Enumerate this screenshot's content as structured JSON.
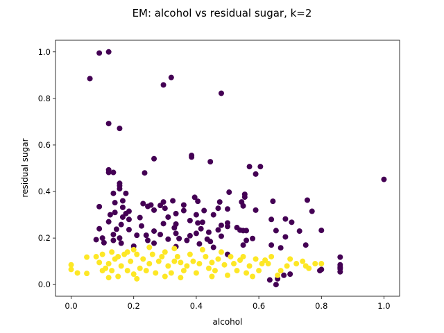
{
  "chart_data": {
    "type": "scatter",
    "title": "EM: alcohol vs residual sugar, k=2",
    "xlabel": "alcohol",
    "ylabel": "residual sugar",
    "xlim": [
      -0.05,
      1.05
    ],
    "ylim": [
      -0.05,
      1.05
    ],
    "x_ticks": [
      "0.0",
      "0.2",
      "0.4",
      "0.6",
      "0.8",
      "1.0"
    ],
    "y_ticks": [
      "0.0",
      "0.2",
      "0.4",
      "0.6",
      "0.8",
      "1.0"
    ],
    "grid": false,
    "legend": "none",
    "colors": {
      "cluster_0": "#440154",
      "cluster_1": "#fde725"
    },
    "series": [
      {
        "color": "#440154",
        "points": [
          [
            0.09,
            0.995
          ],
          [
            0.12,
            1.0
          ],
          [
            0.06,
            0.885
          ],
          [
            0.32,
            0.89
          ],
          [
            0.295,
            0.858
          ],
          [
            0.48,
            0.822
          ],
          [
            0.12,
            0.692
          ],
          [
            0.155,
            0.671
          ],
          [
            0.385,
            0.555
          ],
          [
            0.385,
            0.548
          ],
          [
            0.265,
            0.541
          ],
          [
            0.445,
            0.528
          ],
          [
            0.57,
            0.507
          ],
          [
            0.605,
            0.507
          ],
          [
            0.12,
            0.493
          ],
          [
            0.12,
            0.482
          ],
          [
            0.235,
            0.48
          ],
          [
            0.135,
            0.482
          ],
          [
            0.59,
            0.475
          ],
          [
            1.0,
            0.452
          ],
          [
            0.155,
            0.435
          ],
          [
            0.155,
            0.425
          ],
          [
            0.155,
            0.412
          ],
          [
            0.135,
            0.392
          ],
          [
            0.175,
            0.392
          ],
          [
            0.505,
            0.397
          ],
          [
            0.555,
            0.388
          ],
          [
            0.555,
            0.376
          ],
          [
            0.395,
            0.375
          ],
          [
            0.325,
            0.36
          ],
          [
            0.295,
            0.355
          ],
          [
            0.405,
            0.358
          ],
          [
            0.645,
            0.358
          ],
          [
            0.475,
            0.355
          ],
          [
            0.14,
            0.352
          ],
          [
            0.165,
            0.36
          ],
          [
            0.23,
            0.348
          ],
          [
            0.255,
            0.342
          ],
          [
            0.545,
            0.355
          ],
          [
            0.755,
            0.363
          ],
          [
            0.55,
            0.338
          ],
          [
            0.36,
            0.342
          ],
          [
            0.285,
            0.34
          ],
          [
            0.245,
            0.336
          ],
          [
            0.09,
            0.335
          ],
          [
            0.165,
            0.332
          ],
          [
            0.3,
            0.328
          ],
          [
            0.47,
            0.328
          ],
          [
            0.5,
            0.325
          ],
          [
            0.59,
            0.32
          ],
          [
            0.265,
            0.32
          ],
          [
            0.185,
            0.315
          ],
          [
            0.36,
            0.318
          ],
          [
            0.425,
            0.318
          ],
          [
            0.77,
            0.315
          ],
          [
            0.14,
            0.31
          ],
          [
            0.175,
            0.305
          ],
          [
            0.335,
            0.305
          ],
          [
            0.4,
            0.3
          ],
          [
            0.125,
            0.3
          ],
          [
            0.455,
            0.3
          ],
          [
            0.31,
            0.29
          ],
          [
            0.22,
            0.288
          ],
          [
            0.165,
            0.29
          ],
          [
            0.685,
            0.282
          ],
          [
            0.185,
            0.28
          ],
          [
            0.64,
            0.28
          ],
          [
            0.38,
            0.275
          ],
          [
            0.42,
            0.268
          ],
          [
            0.5,
            0.265
          ],
          [
            0.405,
            0.265
          ],
          [
            0.705,
            0.268
          ],
          [
            0.12,
            0.27
          ],
          [
            0.295,
            0.262
          ],
          [
            0.335,
            0.26
          ],
          [
            0.16,
            0.258
          ],
          [
            0.48,
            0.255
          ],
          [
            0.225,
            0.252
          ],
          [
            0.5,
            0.25
          ],
          [
            0.53,
            0.245
          ],
          [
            0.33,
            0.244
          ],
          [
            0.415,
            0.24
          ],
          [
            0.09,
            0.24
          ],
          [
            0.145,
            0.238
          ],
          [
            0.185,
            0.236
          ],
          [
            0.47,
            0.235
          ],
          [
            0.54,
            0.234
          ],
          [
            0.55,
            0.232
          ],
          [
            0.56,
            0.232
          ],
          [
            0.8,
            0.233
          ],
          [
            0.655,
            0.232
          ],
          [
            0.265,
            0.23
          ],
          [
            0.73,
            0.23
          ],
          [
            0.44,
            0.225
          ],
          [
            0.335,
            0.22
          ],
          [
            0.4,
            0.22
          ],
          [
            0.135,
            0.215
          ],
          [
            0.21,
            0.212
          ],
          [
            0.24,
            0.212
          ],
          [
            0.285,
            0.215
          ],
          [
            0.38,
            0.21
          ],
          [
            0.48,
            0.208
          ],
          [
            0.685,
            0.205
          ],
          [
            0.1,
            0.2
          ],
          [
            0.155,
            0.2
          ],
          [
            0.345,
            0.198
          ],
          [
            0.58,
            0.198
          ],
          [
            0.31,
            0.195
          ],
          [
            0.435,
            0.195
          ],
          [
            0.08,
            0.193
          ],
          [
            0.135,
            0.19
          ],
          [
            0.245,
            0.19
          ],
          [
            0.37,
            0.19
          ],
          [
            0.56,
            0.19
          ],
          [
            0.445,
            0.185
          ],
          [
            0.105,
            0.18
          ],
          [
            0.16,
            0.178
          ],
          [
            0.265,
            0.178
          ],
          [
            0.41,
            0.175
          ],
          [
            0.55,
            0.17
          ],
          [
            0.64,
            0.17
          ],
          [
            0.75,
            0.17
          ],
          [
            0.2,
            0.165
          ],
          [
            0.335,
            0.163
          ],
          [
            0.455,
            0.16
          ],
          [
            0.67,
            0.158
          ],
          [
            0.86,
            0.118
          ],
          [
            0.86,
            0.085
          ],
          [
            0.86,
            0.075
          ],
          [
            0.86,
            0.068
          ],
          [
            0.86,
            0.055
          ],
          [
            0.795,
            0.06
          ],
          [
            0.8,
            0.065
          ],
          [
            0.7,
            0.045
          ],
          [
            0.68,
            0.04
          ],
          [
            0.635,
            0.02
          ],
          [
            0.66,
            0.025
          ],
          [
            0.655,
            0.0
          ],
          [
            0.5,
            0.13
          ]
        ]
      },
      {
        "color": "#fde725",
        "points": [
          [
            0.0,
            0.085
          ],
          [
            0.0,
            0.065
          ],
          [
            0.02,
            0.05
          ],
          [
            0.05,
            0.048
          ],
          [
            0.05,
            0.118
          ],
          [
            0.08,
            0.12
          ],
          [
            0.09,
            0.095
          ],
          [
            0.1,
            0.06
          ],
          [
            0.12,
            0.03
          ],
          [
            0.13,
            0.14
          ],
          [
            0.15,
            0.035
          ],
          [
            0.17,
            0.13
          ],
          [
            0.21,
            0.025
          ],
          [
            0.2,
            0.15
          ],
          [
            0.25,
            0.16
          ],
          [
            0.3,
            0.035
          ],
          [
            0.33,
            0.155
          ],
          [
            0.35,
            0.03
          ],
          [
            0.42,
            0.15
          ],
          [
            0.45,
            0.035
          ],
          [
            0.48,
            0.14
          ],
          [
            0.5,
            0.04
          ],
          [
            0.55,
            0.12
          ],
          [
            0.58,
            0.035
          ],
          [
            0.62,
            0.105
          ],
          [
            0.66,
            0.04
          ],
          [
            0.7,
            0.11
          ],
          [
            0.74,
            0.1
          ],
          [
            0.78,
            0.09
          ],
          [
            0.8,
            0.09
          ],
          [
            0.75,
            0.08
          ],
          [
            0.72,
            0.09
          ],
          [
            0.64,
            0.12
          ],
          [
            0.67,
            0.06
          ],
          [
            0.76,
            0.07
          ],
          [
            0.53,
            0.06
          ],
          [
            0.47,
            0.11
          ],
          [
            0.44,
            0.07
          ],
          [
            0.41,
            0.09
          ],
          [
            0.38,
            0.13
          ],
          [
            0.36,
            0.06
          ],
          [
            0.33,
            0.1
          ],
          [
            0.31,
            0.08
          ],
          [
            0.29,
            0.12
          ],
          [
            0.27,
            0.05
          ],
          [
            0.25,
            0.09
          ],
          [
            0.23,
            0.11
          ],
          [
            0.22,
            0.07
          ],
          [
            0.19,
            0.1
          ],
          [
            0.18,
            0.06
          ],
          [
            0.16,
            0.08
          ],
          [
            0.14,
            0.11
          ],
          [
            0.12,
            0.09
          ],
          [
            0.11,
            0.07
          ],
          [
            0.1,
            0.13
          ],
          [
            0.26,
            0.13
          ],
          [
            0.34,
            0.12
          ],
          [
            0.4,
            0.05
          ],
          [
            0.52,
            0.09
          ],
          [
            0.57,
            0.08
          ],
          [
            0.6,
            0.06
          ],
          [
            0.63,
            0.09
          ],
          [
            0.69,
            0.08
          ],
          [
            0.2,
            0.045
          ],
          [
            0.28,
            0.1
          ],
          [
            0.37,
            0.08
          ],
          [
            0.46,
            0.06
          ],
          [
            0.49,
            0.085
          ],
          [
            0.15,
            0.12
          ],
          [
            0.24,
            0.06
          ],
          [
            0.32,
            0.05
          ],
          [
            0.43,
            0.12
          ],
          [
            0.54,
            0.105
          ],
          [
            0.59,
            0.11
          ],
          [
            0.13,
            0.06
          ],
          [
            0.21,
            0.13
          ],
          [
            0.3,
            0.14
          ],
          [
            0.39,
            0.1
          ],
          [
            0.51,
            0.12
          ],
          [
            0.56,
            0.05
          ],
          [
            0.61,
            0.09
          ],
          [
            0.18,
            0.14
          ],
          [
            0.45,
            0.095
          ],
          [
            0.35,
            0.095
          ]
        ]
      }
    ]
  }
}
